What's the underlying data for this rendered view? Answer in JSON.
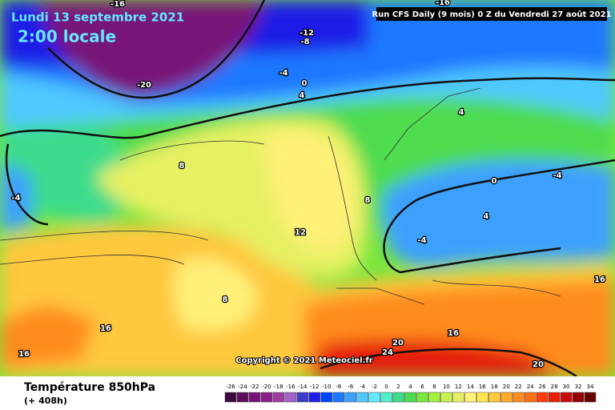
{
  "header": {
    "date": "Lundi 13 septembre 2021",
    "time": "2:00 locale",
    "run": "Run CFS Daily (9 mois) 0 Z du Vendredi 27 août 2021"
  },
  "copyright": "Copyright © 2021 Meteociel.fr",
  "footer": {
    "title": "Température 850hPa",
    "lead": "(+ 408h)"
  },
  "contour_labels": [
    -16,
    -16,
    -12,
    -8,
    -4,
    -20,
    0,
    4,
    4,
    8,
    -4,
    0,
    -4,
    8,
    4,
    12,
    -4,
    8,
    16,
    16,
    16,
    16,
    20,
    24,
    20
  ],
  "legend": {
    "ticks": [
      -26,
      -24,
      -22,
      -20,
      -18,
      -16,
      -14,
      -12,
      -10,
      -8,
      -6,
      -4,
      -2,
      0,
      2,
      4,
      6,
      8,
      10,
      12,
      14,
      16,
      18,
      20,
      22,
      24,
      26,
      28,
      30,
      32,
      34
    ],
    "colors": [
      "#3c0a3c",
      "#5a0f5a",
      "#781478",
      "#8c1e8c",
      "#a03ca0",
      "#a064c8",
      "#3c3cc8",
      "#1e1ee6",
      "#0046ff",
      "#1e78ff",
      "#3ca0ff",
      "#50c8ff",
      "#64e6ff",
      "#50f0c8",
      "#3cdc8c",
      "#50dc50",
      "#78e63c",
      "#a0f03c",
      "#c8f050",
      "#e6f064",
      "#fff078",
      "#ffe650",
      "#ffc83c",
      "#ffaa28",
      "#ff8c1e",
      "#ff6e14",
      "#ff3c0a",
      "#e61e0a",
      "#c80a0a",
      "#960000",
      "#640000"
    ]
  }
}
